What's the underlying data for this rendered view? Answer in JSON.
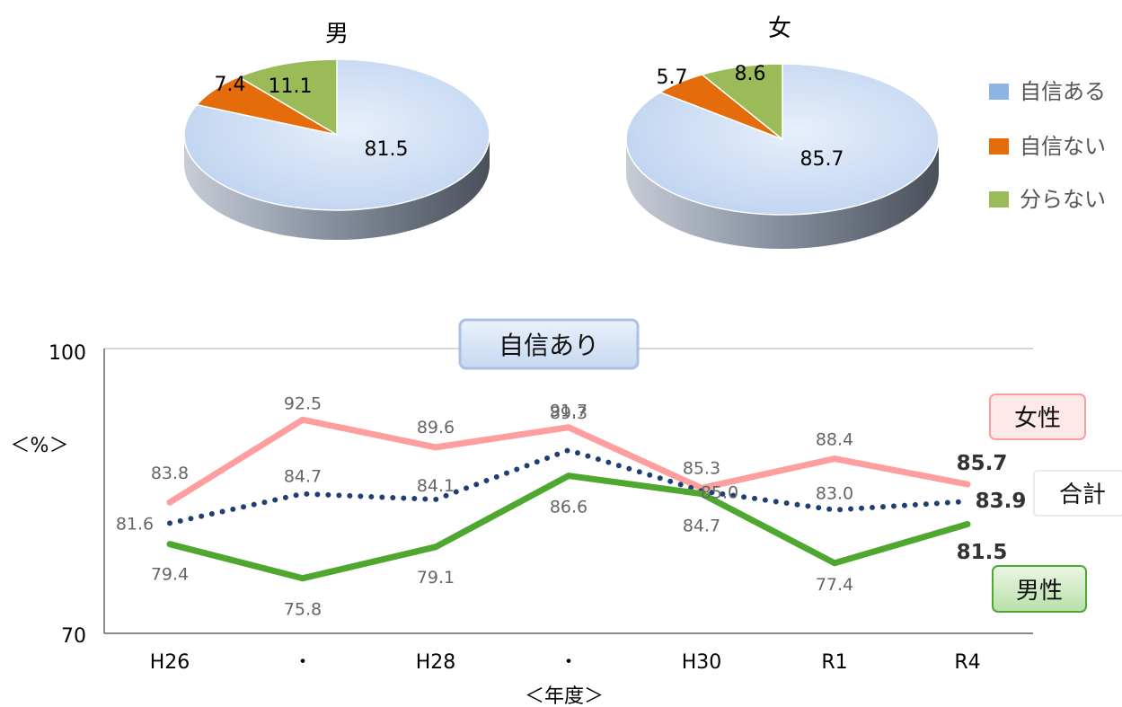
{
  "chart_data": [
    {
      "type": "pie",
      "title": "男",
      "categories": [
        "自信ある",
        "自信ない",
        "分らない"
      ],
      "values": [
        81.5,
        7.4,
        11.1
      ],
      "colors": [
        "#c5d9f4",
        "#e46c0a",
        "#9bbb59"
      ]
    },
    {
      "type": "pie",
      "title": "女",
      "categories": [
        "自信ある",
        "自信ない",
        "分らない"
      ],
      "values": [
        85.7,
        5.7,
        8.6
      ],
      "colors": [
        "#c5d9f4",
        "#e46c0a",
        "#9bbb59"
      ]
    },
    {
      "type": "line",
      "title": "自信あり",
      "xlabel": "＜年度＞",
      "ylabel": "＜%＞",
      "categories": [
        "H26",
        "・",
        "H28",
        "・",
        "H30",
        "R1",
        "R4"
      ],
      "ylim": [
        70,
        100
      ],
      "yticks": [
        "70",
        "100"
      ],
      "series": [
        {
          "name": "女性",
          "values": [
            83.8,
            92.5,
            89.6,
            91.7,
            85.3,
            88.4,
            85.7
          ],
          "color": "#ff9e9e",
          "style": "solid"
        },
        {
          "name": "合計",
          "values": [
            81.6,
            84.7,
            84.1,
            89.3,
            85.0,
            83.0,
            83.9
          ],
          "color": "#1f3f73",
          "style": "dotted"
        },
        {
          "name": "男性",
          "values": [
            79.4,
            75.8,
            79.1,
            86.6,
            84.7,
            77.4,
            81.5
          ],
          "color": "#4ea72e",
          "style": "solid"
        }
      ],
      "end_labels": {
        "female": "85.7",
        "total": "83.9",
        "male": "81.5"
      }
    }
  ],
  "legend": [
    {
      "label": "自信ある",
      "color": "#8eb4e3"
    },
    {
      "label": "自信ない",
      "color": "#e46c0a"
    },
    {
      "label": "分らない",
      "color": "#9bbb59"
    }
  ]
}
